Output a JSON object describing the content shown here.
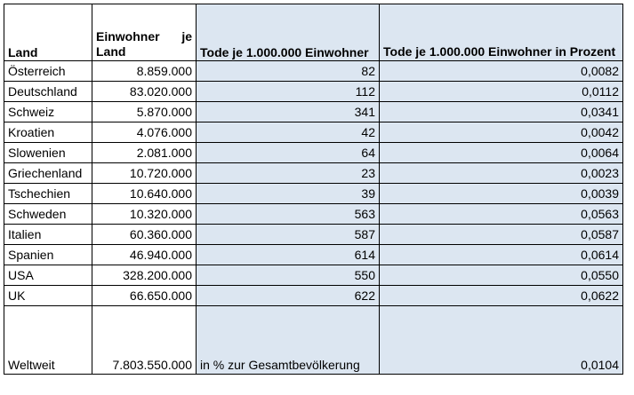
{
  "table": {
    "headers": {
      "land": "Land",
      "einwohner": "Einwohner je Land",
      "tode": "Tode je 1.000.000 Einwohner",
      "prozent": "Tode je 1.000.000 Einwohner in Prozent"
    },
    "rows": [
      {
        "land": "Österreich",
        "einwohner": "8.859.000",
        "tode": "82",
        "prozent": "0,0082"
      },
      {
        "land": "Deutschland",
        "einwohner": "83.020.000",
        "tode": "112",
        "prozent": "0,0112"
      },
      {
        "land": "Schweiz",
        "einwohner": "5.870.000",
        "tode": "341",
        "prozent": "0,0341"
      },
      {
        "land": "Kroatien",
        "einwohner": "4.076.000",
        "tode": "42",
        "prozent": "0,0042"
      },
      {
        "land": "Slowenien",
        "einwohner": "2.081.000",
        "tode": "64",
        "prozent": "0,0064"
      },
      {
        "land": "Griechenland",
        "einwohner": "10.720.000",
        "tode": "23",
        "prozent": "0,0023"
      },
      {
        "land": "Tschechien",
        "einwohner": "10.640.000",
        "tode": "39",
        "prozent": "0,0039"
      },
      {
        "land": "Schweden",
        "einwohner": "10.320.000",
        "tode": "563",
        "prozent": "0,0563"
      },
      {
        "land": "Italien",
        "einwohner": "60.360.000",
        "tode": "587",
        "prozent": "0,0587"
      },
      {
        "land": "Spanien",
        "einwohner": "46.940.000",
        "tode": "614",
        "prozent": "0,0614"
      },
      {
        "land": "USA",
        "einwohner": "328.200.000",
        "tode": "550",
        "prozent": "0,0550"
      },
      {
        "land": "UK",
        "einwohner": "66.650.000",
        "tode": "622",
        "prozent": "0,0622"
      }
    ],
    "world": {
      "land": "Weltweit",
      "einwohner": "7.803.550.000",
      "tode": "in % zur Gesamtbevölkerung",
      "prozent": "0,0104"
    }
  },
  "colors": {
    "shade": "#dce6f1",
    "border": "#000000"
  }
}
